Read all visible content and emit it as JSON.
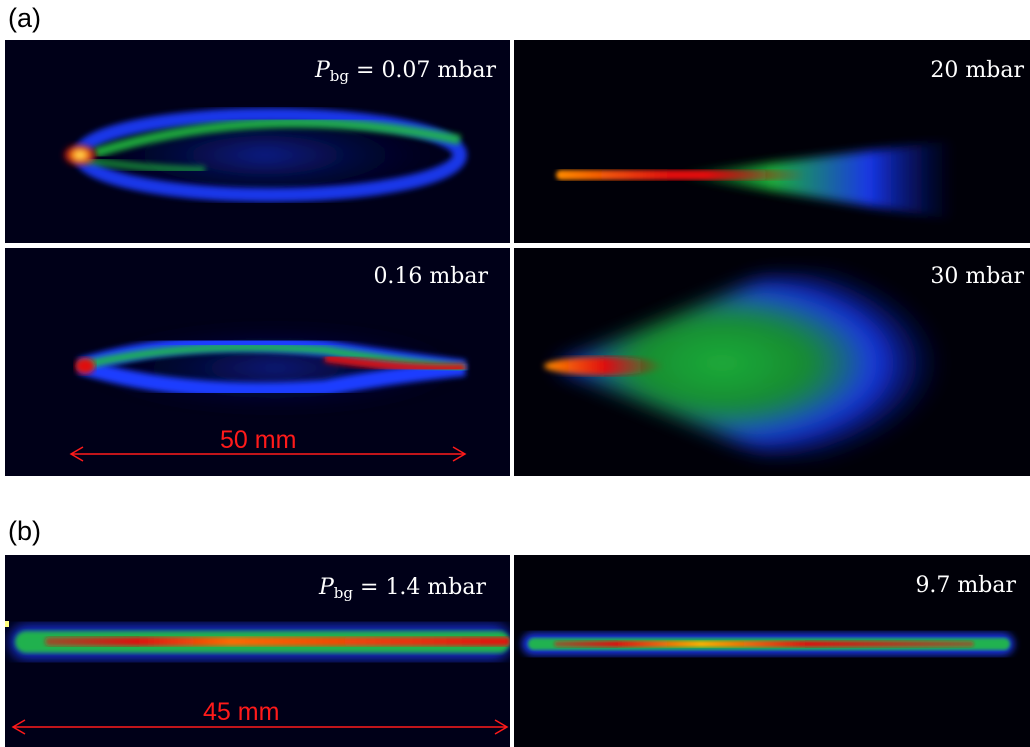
{
  "figure": {
    "label_a": "(a)",
    "label_b": "(b)"
  },
  "panels": {
    "a1": {
      "symbol": "P",
      "subscript": "bg",
      "equals": " = ",
      "value": "0.07 mbar"
    },
    "a2": {
      "text": "20 mbar"
    },
    "a3": {
      "text": "0.16 mbar",
      "scale": "50 mm"
    },
    "a4": {
      "text": "30 mbar"
    },
    "b1": {
      "symbol": "P",
      "subscript": "bg",
      "equals": " = ",
      "value": "1.4 mbar",
      "scale": "45 mm"
    },
    "b2": {
      "text": "9.7 mbar"
    }
  },
  "colors": {
    "background": "#000000",
    "label_text": "#ffffff",
    "scale_bar": "#ff1a1a",
    "colormap": [
      "#000010",
      "#0a1aa0",
      "#1a3cff",
      "#20c040",
      "#e01010",
      "#ff8c00",
      "#ffff80"
    ]
  }
}
